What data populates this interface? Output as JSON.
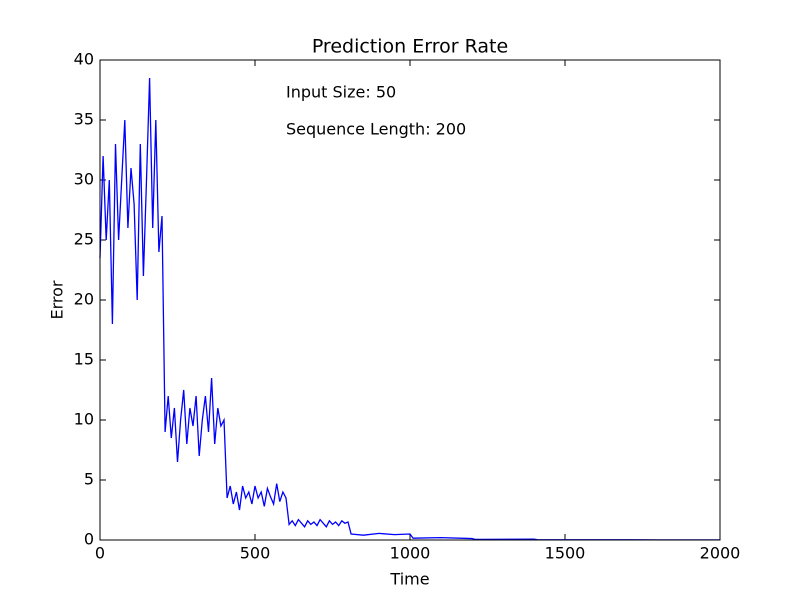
{
  "chart_data": {
    "type": "line",
    "title": "Prediction Error Rate",
    "xlabel": "Time",
    "ylabel": "Error",
    "annotations": [
      "Input Size: 50",
      "Sequence Length: 200"
    ],
    "xlim": [
      0,
      2000
    ],
    "xticks": [
      0,
      500,
      1000,
      1500,
      2000
    ],
    "ylim": [
      0,
      40
    ],
    "yticks": [
      0,
      5,
      10,
      15,
      20,
      25,
      30,
      35,
      40
    ],
    "grid": false,
    "x": [
      0,
      10,
      20,
      30,
      40,
      50,
      60,
      70,
      80,
      90,
      100,
      110,
      120,
      130,
      140,
      150,
      160,
      170,
      180,
      190,
      200,
      210,
      220,
      230,
      240,
      250,
      260,
      270,
      280,
      290,
      300,
      310,
      320,
      330,
      340,
      350,
      360,
      370,
      380,
      390,
      400,
      410,
      420,
      430,
      440,
      450,
      460,
      470,
      480,
      490,
      500,
      510,
      520,
      530,
      540,
      550,
      560,
      570,
      580,
      590,
      600,
      610,
      620,
      630,
      640,
      650,
      660,
      670,
      680,
      690,
      700,
      710,
      720,
      730,
      740,
      750,
      760,
      770,
      780,
      790,
      800,
      810,
      850,
      900,
      950,
      1000,
      1010,
      1100,
      1200,
      1210,
      1400,
      1410,
      1600,
      1800,
      2000
    ],
    "series": [
      {
        "name": "Error",
        "color": "#0000ff",
        "values": [
          23.5,
          32,
          25,
          30,
          18,
          33,
          25,
          30,
          35,
          26,
          31,
          28,
          20,
          33,
          22,
          30,
          38.5,
          26,
          35,
          24,
          27,
          9,
          12,
          8.5,
          11,
          6.5,
          10,
          12.5,
          8,
          11,
          9.5,
          12,
          7,
          10,
          12,
          9,
          13.5,
          8,
          11,
          9.5,
          10,
          3.5,
          4.5,
          3,
          4,
          2.5,
          4.5,
          3.5,
          4,
          3,
          4.5,
          3.5,
          4,
          2.8,
          4.3,
          3.6,
          3,
          4.7,
          3.2,
          4,
          3.5,
          1.3,
          1.6,
          1.2,
          1.7,
          1.4,
          1.1,
          1.6,
          1.3,
          1.5,
          1.2,
          1.7,
          1.4,
          1.1,
          1.6,
          1.3,
          1.5,
          1.2,
          1.6,
          1.4,
          1.5,
          0.5,
          0.4,
          0.55,
          0.45,
          0.5,
          0.15,
          0.2,
          0.12,
          0.05,
          0.07,
          0.03,
          0.02,
          0.01,
          0.01
        ]
      }
    ]
  }
}
